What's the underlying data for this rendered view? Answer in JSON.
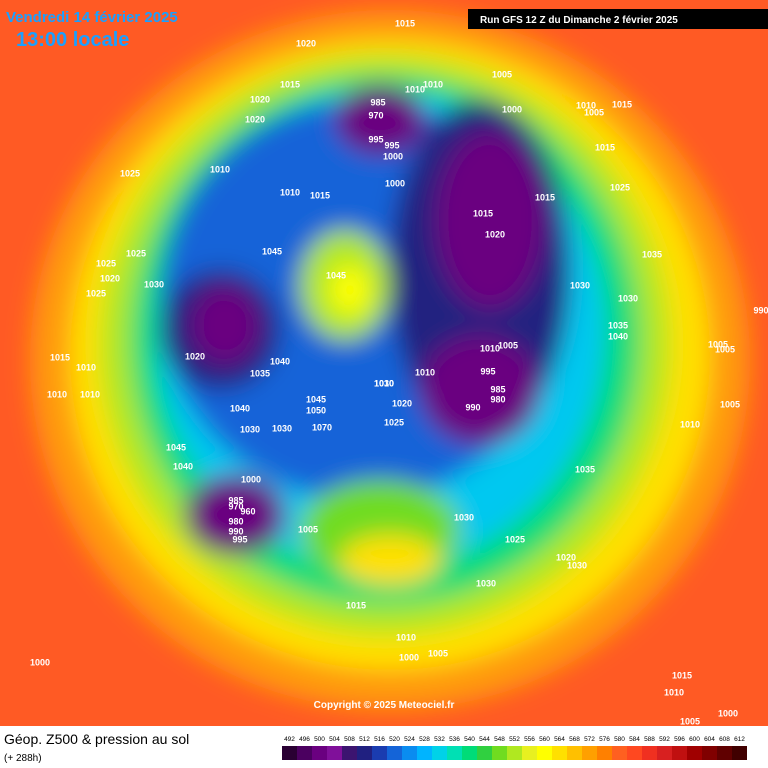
{
  "header": {
    "date": "Vendredi 14 février 2025",
    "time": "13:00 locale",
    "run": "Run GFS 12 Z du Dimanche 2 février 2025"
  },
  "isobar_labels": [
    "1015",
    "1020",
    "1005",
    "1010",
    "1015",
    "1010",
    "1020",
    "1015",
    "1020",
    "985",
    "970",
    "995",
    "995",
    "1010",
    "1000",
    "1000",
    "1015",
    "1005",
    "1015",
    "1025",
    "1010",
    "1010",
    "1015",
    "1015",
    "1000",
    "1025",
    "1045",
    "1045",
    "1020",
    "1035",
    "1025",
    "1025",
    "1030",
    "1020",
    "1025",
    "1015",
    "1010",
    "1010",
    "1010",
    "1020",
    "1035",
    "1040",
    "1040",
    "1010",
    "1030",
    "1030",
    "1035",
    "1040",
    "1005",
    "995",
    "985",
    "980",
    "990",
    "1010",
    "1005",
    "1025",
    "1020",
    "1030",
    "1045",
    "1050",
    "1070",
    "1030",
    "1045",
    "1040",
    "1000",
    "985",
    "970",
    "960",
    "980",
    "990",
    "995",
    "1005",
    "1035",
    "1030",
    "1030",
    "1020",
    "1025",
    "1030",
    "1015",
    "1010",
    "1000",
    "1005",
    "1000",
    "1015",
    "1010",
    "1005",
    "1000",
    "1005",
    "1005",
    "990",
    "1010",
    "1010",
    "1030"
  ],
  "footer": {
    "copyright": "Copyright © 2025 Meteociel.fr",
    "title": "Géop. Z500 & pression au sol",
    "lead": "(+ 288h)"
  },
  "scale": {
    "values": [
      492,
      496,
      500,
      504,
      508,
      512,
      516,
      520,
      524,
      528,
      532,
      536,
      540,
      544,
      548,
      552,
      556,
      560,
      564,
      568,
      572,
      576,
      580,
      584,
      588,
      592,
      596,
      600,
      604,
      608,
      612
    ],
    "colors": [
      "#2a0033",
      "#4b0060",
      "#6a0080",
      "#80109a",
      "#3c1470",
      "#202080",
      "#1a3cb0",
      "#1464d8",
      "#0a8cf0",
      "#00b4ff",
      "#00d2e8",
      "#00e0b4",
      "#00dc78",
      "#30d040",
      "#70dc20",
      "#b0e820",
      "#e8f020",
      "#ffff00",
      "#ffe000",
      "#ffc000",
      "#ffa000",
      "#ff8000",
      "#ff6020",
      "#ff4820",
      "#f03020",
      "#d82020",
      "#c01010",
      "#a00000",
      "#800000",
      "#600000",
      "#400000"
    ]
  }
}
